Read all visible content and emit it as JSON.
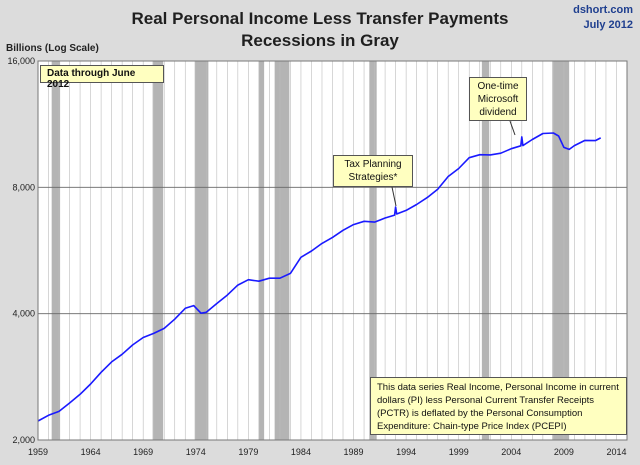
{
  "header": {
    "title_line1": "Real Personal Income Less Transfer Payments",
    "title_line2": "Recessions in Gray",
    "source": "dshort.com",
    "date": "July 2012",
    "ylabel": "Billions (Log Scale)"
  },
  "annotations": {
    "data_through": "Data through June 2012",
    "tax_line1": "Tax Planning",
    "tax_line2": "Strategies*",
    "msft_line1": "One-time",
    "msft_line2": "Microsoft",
    "msft_line3": "dividend",
    "note": "This data series  Real Income, Personal Income in current dollars  (PI) less Personal Current Transfer Receipts (PCTR) is deflated by the Personal Consumption Expenditure: Chain-type Price Index (PCEPI)"
  },
  "colors": {
    "line": "#1a1aff",
    "recession": "#b4b4b4",
    "plot_bg": "#ffffff",
    "grid": "#bcbcbc"
  },
  "chart_data": {
    "type": "line",
    "y_scale": "log",
    "ylim": [
      2000,
      16000
    ],
    "y_ticks": [
      2000,
      4000,
      8000,
      16000
    ],
    "y_tick_labels": [
      "2,000",
      "4,000",
      "8,000",
      "16,000"
    ],
    "xlim": [
      1959,
      2015
    ],
    "x_ticks": [
      1959,
      1964,
      1969,
      1974,
      1979,
      1984,
      1989,
      1994,
      1999,
      2004,
      2009,
      2014
    ],
    "x_tick_labels": [
      "1959",
      "1964",
      "1969",
      "1974",
      "1979",
      "1984",
      "1989",
      "1994",
      "1999",
      "2004",
      "2009",
      "2014"
    ],
    "recessions": [
      [
        1960.3,
        1961.1
      ],
      [
        1969.9,
        1970.9
      ],
      [
        1973.9,
        1975.2
      ],
      [
        1980.0,
        1980.5
      ],
      [
        1981.5,
        1982.9
      ],
      [
        1990.5,
        1991.2
      ],
      [
        2001.2,
        2001.9
      ],
      [
        2007.9,
        2009.5
      ]
    ],
    "series": [
      {
        "x": [
          1959.0,
          1960.0,
          1961.0,
          1962.0,
          1963.0,
          1964.0,
          1965.0,
          1966.0,
          1967.0,
          1968.0,
          1969.0,
          1970.0,
          1971.0,
          1972.0,
          1973.0,
          1973.8,
          1974.5,
          1975.0,
          1976.0,
          1977.0,
          1978.0,
          1979.0,
          1980.0,
          1981.0,
          1982.0,
          1983.0,
          1984.0,
          1985.0,
          1986.0,
          1987.0,
          1988.0,
          1989.0,
          1990.0,
          1991.0,
          1992.0,
          1992.9,
          1993.0,
          1993.1,
          1994.0,
          1995.0,
          1996.0,
          1997.0,
          1998.0,
          1999.0,
          2000.0,
          2001.0,
          2002.0,
          2003.0,
          2004.0,
          2004.9,
          2005.0,
          2005.1,
          2006.0,
          2007.0,
          2008.0,
          2008.5,
          2009.0,
          2009.5,
          2010.0,
          2011.0,
          2012.0,
          2012.5
        ],
        "y": [
          2220,
          2290,
          2340,
          2450,
          2570,
          2720,
          2900,
          3070,
          3200,
          3370,
          3510,
          3590,
          3690,
          3880,
          4120,
          4180,
          4010,
          4030,
          4230,
          4430,
          4680,
          4820,
          4780,
          4860,
          4860,
          4990,
          5450,
          5640,
          5880,
          6080,
          6320,
          6520,
          6640,
          6610,
          6760,
          6870,
          7180,
          6910,
          7050,
          7280,
          7560,
          7920,
          8490,
          8870,
          9410,
          9570,
          9560,
          9650,
          9890,
          10050,
          10550,
          10060,
          10400,
          10750,
          10780,
          10600,
          9960,
          9850,
          10060,
          10350,
          10340,
          10490
        ]
      }
    ]
  }
}
